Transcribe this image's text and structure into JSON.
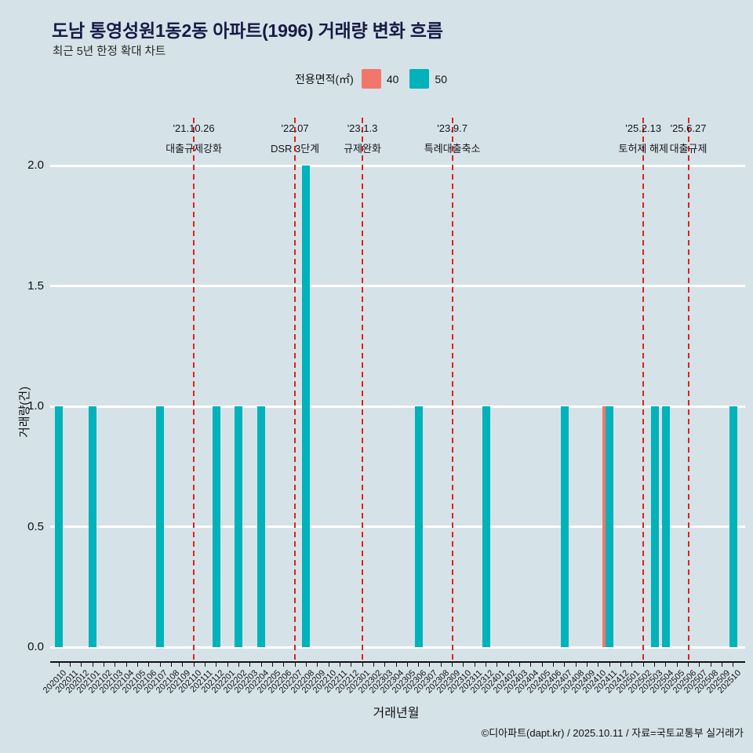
{
  "header": {
    "title": "도남 통영성원1동2동 아파트(1996) 거래량 변화 흐름",
    "subtitle": "최근 5년 한정 확대 차트"
  },
  "legend": {
    "label": "전용면적(㎡)",
    "items": [
      {
        "name": "40",
        "color": "#f3766b"
      },
      {
        "name": "50",
        "color": "#00b2ba"
      }
    ]
  },
  "chart_data": {
    "type": "bar",
    "title": "도남 통영성원1동2동 아파트(1996) 거래량 변화 흐름",
    "xlabel": "거래년월",
    "ylabel": "거래량(건)",
    "ylim": [
      0,
      2
    ],
    "yticks": [
      "0.0",
      "0.5",
      "1.0",
      "1.5",
      "2.0"
    ],
    "grid": "horizontal-white",
    "legend_position": "top-center",
    "background_color": "#d5e3e8",
    "event_line_color": "#e3201d",
    "categories": [
      "202010",
      "202011",
      "202012",
      "202101",
      "202102",
      "202103",
      "202104",
      "202105",
      "202106",
      "202107",
      "202108",
      "202109",
      "202110",
      "202111",
      "202112",
      "202201",
      "202202",
      "202203",
      "202204",
      "202205",
      "202206",
      "202207",
      "202208",
      "202209",
      "202210",
      "202211",
      "202212",
      "202301",
      "202302",
      "202303",
      "202304",
      "202305",
      "202306",
      "202307",
      "202308",
      "202309",
      "202310",
      "202311",
      "202312",
      "202401",
      "202402",
      "202403",
      "202404",
      "202405",
      "202406",
      "202407",
      "202408",
      "202409",
      "202410",
      "202411",
      "202412",
      "202501",
      "202502",
      "202503",
      "202504",
      "202505",
      "202506",
      "202507",
      "202508",
      "202509",
      "202510"
    ],
    "series": [
      {
        "name": "40",
        "color": "#f3766b",
        "points": {
          "202411": 1
        }
      },
      {
        "name": "50",
        "color": "#00b2ba",
        "points": {
          "202010": 1,
          "202101": 1,
          "202107": 1,
          "202112": 1,
          "202202": 1,
          "202204": 1,
          "202208": 2,
          "202306": 1,
          "202312": 1,
          "202407": 1,
          "202411": 1,
          "202503": 1,
          "202504": 1,
          "202510": 1
        }
      }
    ],
    "events": [
      {
        "month": "202110",
        "date": "'21.10.26",
        "label": "대출규제강화"
      },
      {
        "month": "202207",
        "date": "'22.07",
        "label": "DSR 3단계"
      },
      {
        "month": "202301",
        "date": "'23.1.3",
        "label": "규제완화"
      },
      {
        "month": "202309",
        "date": "'23.9.7",
        "label": "특례대출축소"
      },
      {
        "month": "202502",
        "date": "'25.2.13",
        "label": "토허제 해제"
      },
      {
        "month": "202506",
        "date": "'25.6.27",
        "label": "대출규제"
      }
    ]
  },
  "footer": {
    "credit": "©디아파트(dapt.kr) / 2025.10.11 / 자료=국토교통부 실거래가"
  }
}
